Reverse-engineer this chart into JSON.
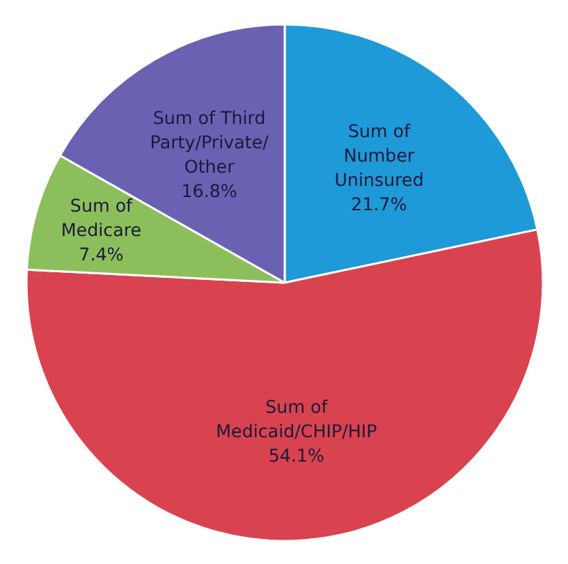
{
  "chart_data": {
    "type": "pie",
    "categories": [
      "Sum of\nNumber\nUninsured",
      "Sum of\nMedicaid/CHIP/HIP",
      "Sum of\nMedicare",
      "Sum of Third\nParty/Private/\nOther"
    ],
    "values": [
      21.7,
      54.1,
      7.4,
      16.8
    ],
    "colors": [
      "#1f9ad8",
      "#d8434f",
      "#8cbf5b",
      "#6b61b3"
    ],
    "value_labels": [
      "21.7%",
      "54.1%",
      "7.4%",
      "16.8%"
    ]
  }
}
